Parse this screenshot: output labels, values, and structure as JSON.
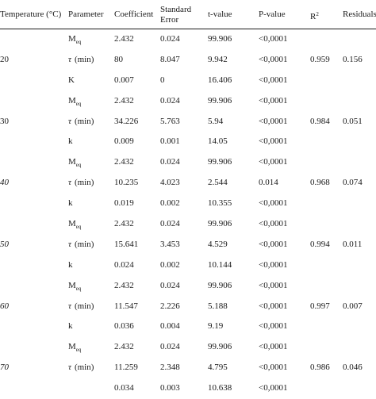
{
  "headers": {
    "temperature": "Temperature (°C)",
    "parameter": "Parameter",
    "coefficient": "Coefficient",
    "std_error_line1": "Standard",
    "std_error_line2": "Error",
    "t_value": "t-value",
    "p_value": "P-value",
    "r2_base": "R",
    "r2_sup": "2",
    "residuals": "Residuals"
  },
  "rows": [
    {
      "temp": "",
      "param_main": "M",
      "param_sub": "eq",
      "coef": "2.432",
      "se": "0.024",
      "t": "99.906",
      "p": "<0,0001",
      "r2": "",
      "res": ""
    },
    {
      "temp": "20",
      "param_main": "τ",
      "param_sub": "(min)",
      "coef": "80",
      "se": "8.047",
      "t": "9.942",
      "p": "<0,0001",
      "r2": "0.959",
      "res": "0.156"
    },
    {
      "temp": "",
      "param_main": "K",
      "param_sub": "",
      "coef": "0.007",
      "se": "0",
      "t": "16.406",
      "p": "<0,0001",
      "r2": "",
      "res": ""
    },
    {
      "temp": "",
      "param_main": "M",
      "param_sub": "eq",
      "coef": "2.432",
      "se": "0.024",
      "t": "99.906",
      "p": "<0,0001",
      "r2": "",
      "res": ""
    },
    {
      "temp": "30",
      "param_main": "τ",
      "param_sub": "(min)",
      "coef": "34.226",
      "se": "5.763",
      "t": "5.94",
      "p": "<0,0001",
      "r2": "0.984",
      "res": "0.051"
    },
    {
      "temp": "",
      "param_main": "k",
      "param_sub": "",
      "coef": "0.009",
      "se": "0.001",
      "t": "14.05",
      "p": "<0,0001",
      "r2": "",
      "res": ""
    },
    {
      "temp": "",
      "param_main": "M",
      "param_sub": "eq",
      "coef": "2.432",
      "se": "0.024",
      "t": "99.906",
      "p": "<0,0001",
      "r2": "",
      "res": ""
    },
    {
      "temp": "40",
      "param_main": "τ",
      "param_sub": "(min)",
      "coef": "10.235",
      "se": "4.023",
      "t": "2.544",
      "p": "0.014",
      "r2": "0.968",
      "res": "0.074"
    },
    {
      "temp": "",
      "param_main": "k",
      "param_sub": "",
      "coef": "0.019",
      "se": "0.002",
      "t": "10.355",
      "p": "<0,0001",
      "r2": "",
      "res": ""
    },
    {
      "temp": "",
      "param_main": "M",
      "param_sub": "eq",
      "coef": "2.432",
      "se": "0.024",
      "t": "99.906",
      "p": "<0,0001",
      "r2": "",
      "res": ""
    },
    {
      "temp": "50",
      "param_main": "τ",
      "param_sub": "(min)",
      "coef": "15.641",
      "se": "3.453",
      "t": "4.529",
      "p": "<0,0001",
      "r2": "0.994",
      "res": "0.011"
    },
    {
      "temp": "",
      "param_main": "k",
      "param_sub": "",
      "coef": "0.024",
      "se": "0.002",
      "t": "10.144",
      "p": "<0,0001",
      "r2": "",
      "res": ""
    },
    {
      "temp": "",
      "param_main": "M",
      "param_sub": "eq",
      "coef": "2.432",
      "se": "0.024",
      "t": "99.906",
      "p": "<0,0001",
      "r2": "",
      "res": ""
    },
    {
      "temp": "60",
      "param_main": "τ",
      "param_sub": "(min)",
      "coef": "11.547",
      "se": "2.226",
      "t": "5.188",
      "p": "<0,0001",
      "r2": "0.997",
      "res": "0.007"
    },
    {
      "temp": "",
      "param_main": "k",
      "param_sub": "",
      "coef": "0.036",
      "se": "0.004",
      "t": "9.19",
      "p": "<0,0001",
      "r2": "",
      "res": ""
    },
    {
      "temp": "",
      "param_main": "M",
      "param_sub": "eq",
      "coef": "2.432",
      "se": "0.024",
      "t": "99.906",
      "p": "<0,0001",
      "r2": "",
      "res": ""
    },
    {
      "temp": "70",
      "param_main": "τ",
      "param_sub": "(min)",
      "coef": "11.259",
      "se": "2.348",
      "t": "4.795",
      "p": "<0,0001",
      "r2": "0.986",
      "res": "0.046"
    },
    {
      "temp": "",
      "param_main": "",
      "param_sub": "",
      "coef": "0.034",
      "se": "0.003",
      "t": "10.638",
      "p": "<0,0001",
      "r2": "",
      "res": ""
    }
  ]
}
